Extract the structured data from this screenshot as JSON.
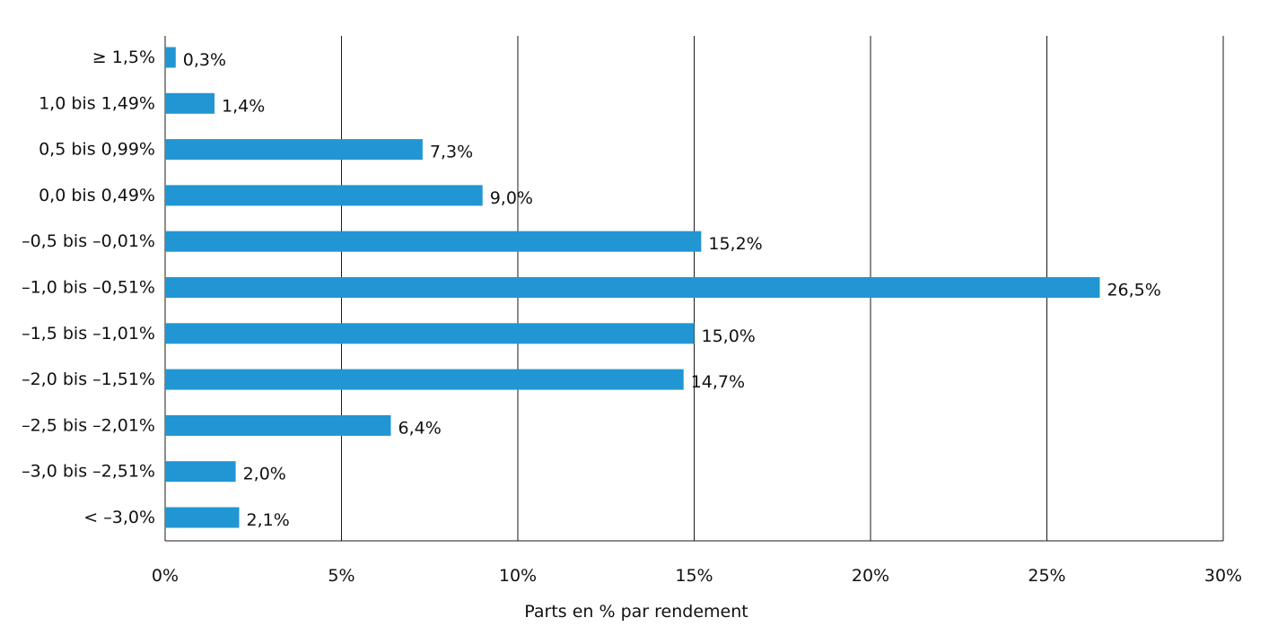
{
  "chart_data": {
    "type": "bar",
    "orientation": "horizontal",
    "categories": [
      "≥ 1,5%",
      "1,0 bis 1,49%",
      "0,5 bis 0,99%",
      "0,0 bis 0,49%",
      "–0,5 bis –0,01%",
      "–1,0 bis –0,51%",
      "–1,5 bis –1,01%",
      "–2,0 bis –1,51%",
      "–2,5 bis –2,01%",
      "–3,0 bis –2,51%",
      "< –3,0%"
    ],
    "values": [
      0.3,
      1.4,
      7.3,
      9.0,
      15.2,
      26.5,
      15.0,
      14.7,
      6.4,
      2.0,
      2.1
    ],
    "data_labels": [
      "0,3%",
      "1,4%",
      "7,3%",
      "9,0%",
      "15,2%",
      "26,5%",
      "15,0%",
      "14,7%",
      "6,4%",
      "2,0%",
      "2,1%"
    ],
    "xlim": [
      0,
      30
    ],
    "x_ticks": [
      0,
      5,
      10,
      15,
      20,
      25,
      30
    ],
    "x_tick_labels": [
      "0%",
      "5%",
      "10%",
      "15%",
      "20%",
      "25%",
      "30%"
    ],
    "xlabel": "Parts en % par rendement",
    "ylabel": "",
    "title": "",
    "grid": "vertical",
    "bar_color": "#2196d3"
  }
}
